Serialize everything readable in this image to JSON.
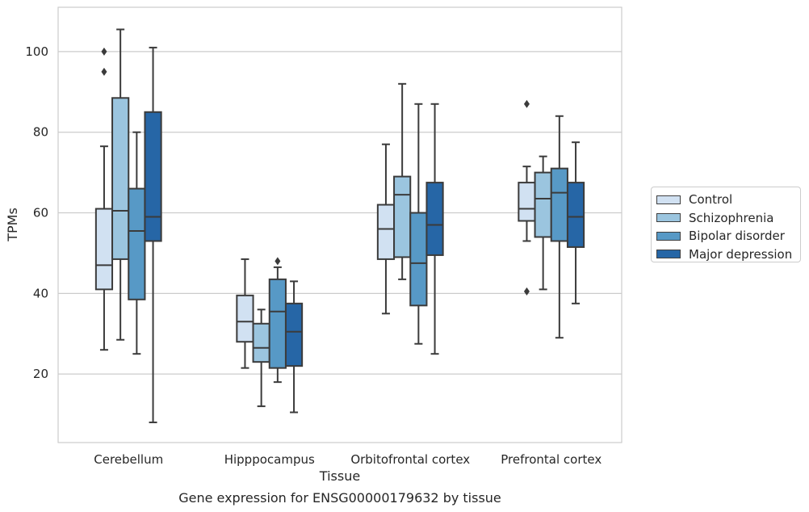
{
  "chart_data": {
    "type": "box",
    "xlabel": "Tissue",
    "ylabel": "TPMs",
    "caption": "Gene expression for ENSG00000179632 by tissue",
    "ylim": [
      3,
      111
    ],
    "yticks": [
      20,
      40,
      60,
      80,
      100
    ],
    "grid": true,
    "legend_position": "right",
    "categories": [
      "Cerebellum",
      "Hipppocampus",
      "Orbitofrontal cortex",
      "Prefrontal cortex"
    ],
    "series": [
      {
        "name": "Control",
        "color": "#d1e1f2",
        "boxes": [
          {
            "whisker_low": 26,
            "q1": 41,
            "median": 47,
            "q3": 61,
            "whisker_high": 76.5,
            "outliers": [
              100,
              95
            ]
          },
          {
            "whisker_low": 21.5,
            "q1": 28,
            "median": 33,
            "q3": 39.5,
            "whisker_high": 48.5,
            "outliers": []
          },
          {
            "whisker_low": 35,
            "q1": 48.5,
            "median": 56,
            "q3": 62,
            "whisker_high": 77,
            "outliers": []
          },
          {
            "whisker_low": 53,
            "q1": 58,
            "median": 61,
            "q3": 67.5,
            "whisker_high": 71.5,
            "outliers": [
              87,
              40.5
            ]
          }
        ]
      },
      {
        "name": "Schizophrenia",
        "color": "#9bc5df",
        "boxes": [
          {
            "whisker_low": 28.5,
            "q1": 48.5,
            "median": 60.5,
            "q3": 88.5,
            "whisker_high": 105.5,
            "outliers": []
          },
          {
            "whisker_low": 12,
            "q1": 23,
            "median": 26.5,
            "q3": 32.5,
            "whisker_high": 36,
            "outliers": []
          },
          {
            "whisker_low": 43.5,
            "q1": 49,
            "median": 64.5,
            "q3": 69,
            "whisker_high": 92,
            "outliers": []
          },
          {
            "whisker_low": 41,
            "q1": 54,
            "median": 63.5,
            "q3": 70,
            "whisker_high": 74,
            "outliers": []
          }
        ]
      },
      {
        "name": "Bipolar disorder",
        "color": "#5799c6",
        "boxes": [
          {
            "whisker_low": 25,
            "q1": 38.5,
            "median": 55.5,
            "q3": 66,
            "whisker_high": 80,
            "outliers": []
          },
          {
            "whisker_low": 18,
            "q1": 21.5,
            "median": 35.5,
            "q3": 43.5,
            "whisker_high": 46.5,
            "outliers": [
              48
            ]
          },
          {
            "whisker_low": 27.5,
            "q1": 37,
            "median": 47.5,
            "q3": 60,
            "whisker_high": 87,
            "outliers": []
          },
          {
            "whisker_low": 29,
            "q1": 53,
            "median": 65,
            "q3": 71,
            "whisker_high": 84,
            "outliers": []
          }
        ]
      },
      {
        "name": "Major depression",
        "color": "#2666a6",
        "boxes": [
          {
            "whisker_low": 8,
            "q1": 53,
            "median": 59,
            "q3": 85,
            "whisker_high": 101,
            "outliers": []
          },
          {
            "whisker_low": 10.5,
            "q1": 22,
            "median": 30.5,
            "q3": 37.5,
            "whisker_high": 43,
            "outliers": []
          },
          {
            "whisker_low": 25,
            "q1": 49.5,
            "median": 57,
            "q3": 67.5,
            "whisker_high": 87,
            "outliers": []
          },
          {
            "whisker_low": 37.5,
            "q1": 51.5,
            "median": 59,
            "q3": 67.5,
            "whisker_high": 77.5,
            "outliers": []
          }
        ]
      }
    ]
  }
}
